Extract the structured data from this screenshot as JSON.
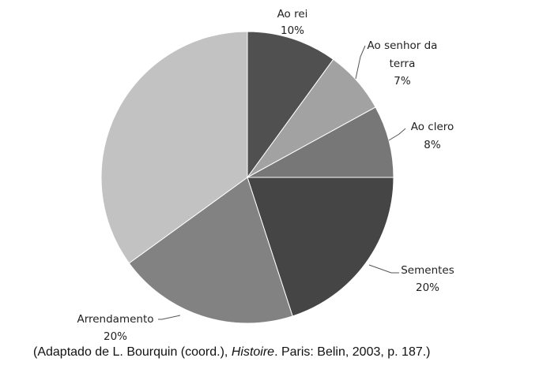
{
  "chart_data": {
    "type": "pie",
    "start": "top",
    "direction": "clockwise",
    "slices": [
      {
        "label": "Ao rei",
        "value": 10,
        "value_label": "10%",
        "color": "#505050"
      },
      {
        "label": "Ao senhor da terra",
        "value": 7,
        "value_label": "7%",
        "color": "#a2a2a2"
      },
      {
        "label": "Ao clero",
        "value": 8,
        "value_label": "8%",
        "color": "#777777"
      },
      {
        "label": "Sementes",
        "value": 20,
        "value_label": "20%",
        "color": "#454545"
      },
      {
        "label": "Arrendamento",
        "value": 20,
        "value_label": "20%",
        "color": "#828282"
      },
      {
        "label": "",
        "value": 35,
        "value_label": "",
        "color": "#c2c2c2"
      }
    ]
  },
  "caption": {
    "prefix": "(Adaptado de L. Bourquin (coord.), ",
    "italic": "Histoire",
    "suffix": ". Paris: Belin, 2003, p. 187.)"
  }
}
